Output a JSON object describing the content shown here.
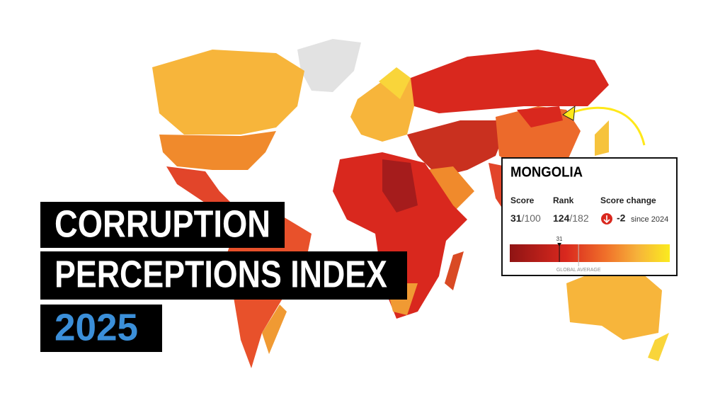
{
  "title": {
    "line1": "CORRUPTION",
    "line2": "PERCEPTIONS INDEX",
    "year": "2025"
  },
  "card": {
    "country": "MONGOLIA",
    "score_label": "Score",
    "score": 31,
    "score_max": "/100",
    "rank_label": "Rank",
    "rank": 124,
    "rank_max": "/182",
    "change_label": "Score change",
    "change": -2,
    "change_since": "since 2024",
    "scale": {
      "lim": [
        0,
        100
      ],
      "global_average": 43,
      "global_average_label": "GLOBAL AVERAGE"
    }
  }
}
